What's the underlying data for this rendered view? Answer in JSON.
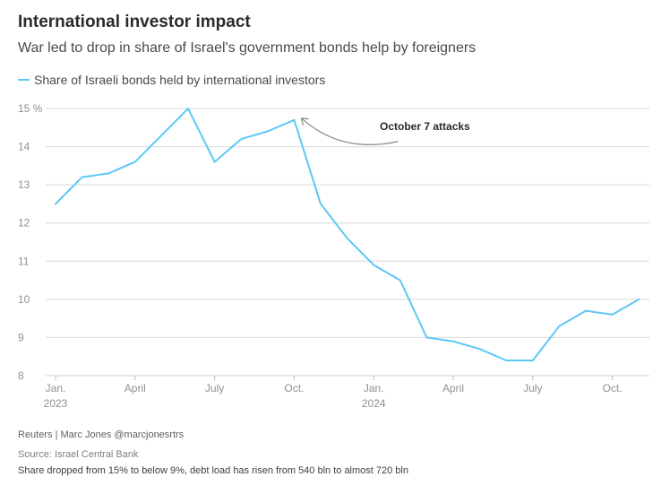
{
  "title": "International investor impact",
  "subtitle": "War led to drop in share of Israel's government bonds help by foreigners",
  "colors": {
    "line": "#5cc8f5",
    "grid": "#d9d9d9",
    "annotation_arrow": "#888888"
  },
  "chart_data": {
    "type": "line",
    "title": "International investor impact",
    "subtitle": "War led to drop in share of Israel's government bonds help by foreigners",
    "series": [
      {
        "name": "Share of Israeli bonds held by international investors",
        "x": [
          "2023-01",
          "2023-02",
          "2023-03",
          "2023-04",
          "2023-05",
          "2023-06",
          "2023-07",
          "2023-08",
          "2023-09",
          "2023-10",
          "2023-11",
          "2023-12",
          "2024-01",
          "2024-02",
          "2024-03",
          "2024-04",
          "2024-05",
          "2024-06",
          "2024-07",
          "2024-08",
          "2024-09",
          "2024-10",
          "2024-11"
        ],
        "values": [
          12.5,
          13.2,
          13.3,
          13.6,
          14.3,
          15.0,
          13.6,
          14.2,
          14.4,
          14.7,
          12.5,
          11.6,
          10.9,
          10.5,
          9.0,
          8.9,
          8.7,
          8.4,
          8.4,
          9.3,
          9.7,
          9.6,
          10.0
        ]
      }
    ],
    "yticks": [
      "15 %",
      "14",
      "13",
      "12",
      "11",
      "10",
      "9",
      "8"
    ],
    "ylim": [
      8,
      15
    ],
    "xticks": [
      {
        "line1": "Jan.",
        "line2": "2023",
        "x": "2023-01"
      },
      {
        "line1": "April",
        "line2": "",
        "x": "2023-04"
      },
      {
        "line1": "July",
        "line2": "",
        "x": "2023-07"
      },
      {
        "line1": "Oct.",
        "line2": "",
        "x": "2023-10"
      },
      {
        "line1": "Jan.",
        "line2": "2024",
        "x": "2024-01"
      },
      {
        "line1": "April",
        "line2": "",
        "x": "2024-04"
      },
      {
        "line1": "July",
        "line2": "",
        "x": "2024-07"
      },
      {
        "line1": "Oct.",
        "line2": "",
        "x": "2024-10"
      }
    ],
    "annotations": [
      {
        "text": "October 7 attacks",
        "x": "2023-10",
        "y": 14.7
      }
    ],
    "grid": true,
    "legend_position": "top-left"
  },
  "footer": {
    "credit": "Reuters | Marc Jones @marcjonesrtrs",
    "source": "Source: Israel Central Bank",
    "note": "Share dropped from 15% to below 9%, debt load has risen from 540 bln to almost 720 bln"
  }
}
